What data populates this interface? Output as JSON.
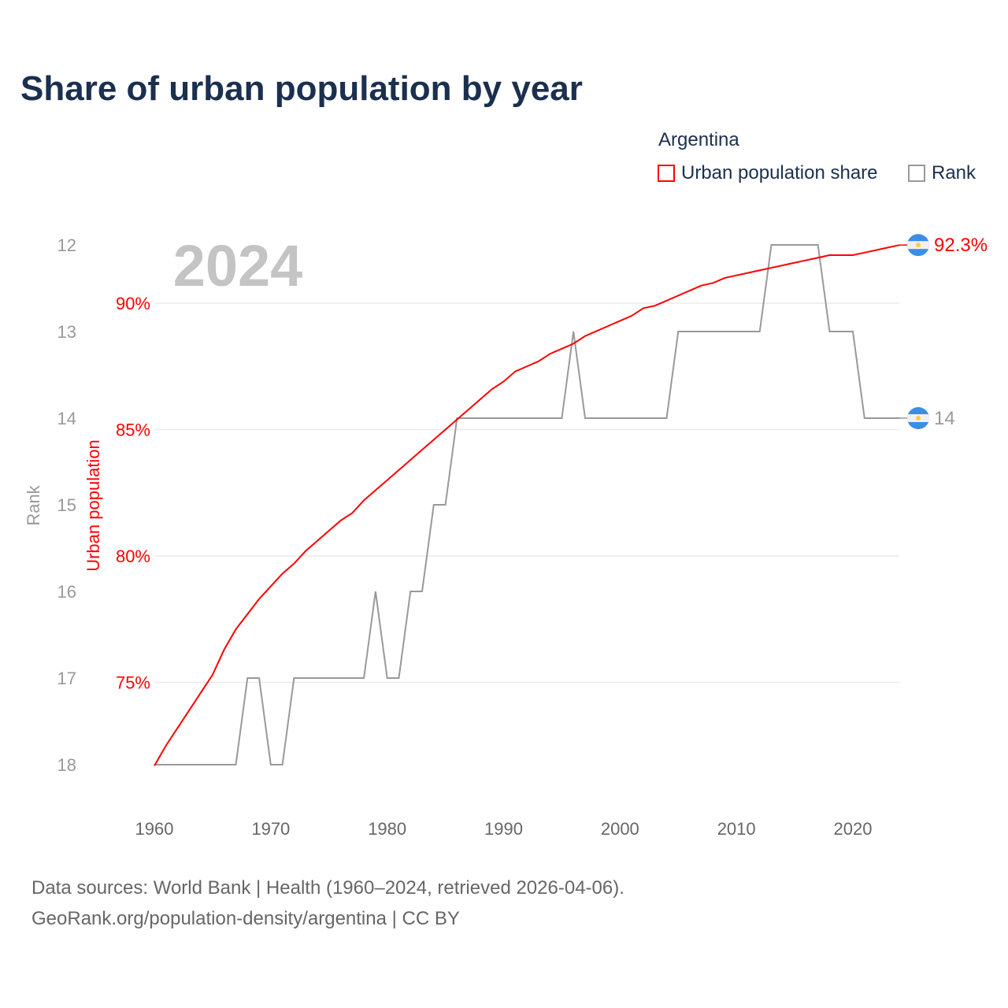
{
  "title": "Share of urban population by year",
  "legend": {
    "title": "Argentina",
    "items": [
      {
        "label": "Urban population share",
        "color": "#ff0000"
      },
      {
        "label": "Rank",
        "color": "#999999"
      }
    ]
  },
  "footer": {
    "line1": "Data sources: World Bank | Health (1960–2024, retrieved 2026-04-06).",
    "line2": "GeoRank.org/population-density/argentina | CC BY"
  },
  "chart_data": {
    "type": "line",
    "title": "Share of urban population by year",
    "year_label": "2024",
    "x": [
      1960,
      1961,
      1962,
      1963,
      1964,
      1965,
      1966,
      1967,
      1968,
      1969,
      1970,
      1971,
      1972,
      1973,
      1974,
      1975,
      1976,
      1977,
      1978,
      1979,
      1980,
      1981,
      1982,
      1983,
      1984,
      1985,
      1986,
      1987,
      1988,
      1989,
      1990,
      1991,
      1992,
      1993,
      1994,
      1995,
      1996,
      1997,
      1998,
      1999,
      2000,
      2001,
      2002,
      2003,
      2004,
      2005,
      2006,
      2007,
      2008,
      2009,
      2010,
      2011,
      2012,
      2013,
      2014,
      2015,
      2016,
      2017,
      2018,
      2019,
      2020,
      2021,
      2022,
      2023,
      2024
    ],
    "xlim": [
      1960,
      2024
    ],
    "xticks": [
      "1960",
      "1970",
      "1980",
      "1990",
      "2000",
      "2010",
      "2020"
    ],
    "series": [
      {
        "name": "Urban population share",
        "axis": "right",
        "color": "#ff0000",
        "unit": "%",
        "values": [
          71.7,
          72.5,
          73.2,
          73.9,
          74.6,
          75.3,
          76.3,
          77.1,
          77.7,
          78.3,
          78.8,
          79.3,
          79.7,
          80.2,
          80.6,
          81.0,
          81.4,
          81.7,
          82.2,
          82.6,
          83.0,
          83.4,
          83.8,
          84.2,
          84.6,
          85.0,
          85.4,
          85.8,
          86.2,
          86.6,
          86.9,
          87.3,
          87.5,
          87.7,
          88.0,
          88.2,
          88.4,
          88.7,
          88.9,
          89.1,
          89.3,
          89.5,
          89.8,
          89.9,
          90.1,
          90.3,
          90.5,
          90.7,
          90.8,
          91.0,
          91.1,
          91.2,
          91.3,
          91.4,
          91.5,
          91.6,
          91.7,
          91.8,
          91.9,
          91.9,
          91.9,
          92.0,
          92.1,
          92.2,
          92.3
        ],
        "end_label": "92.3%"
      },
      {
        "name": "Rank",
        "axis": "left",
        "color": "#999999",
        "values": [
          18,
          18,
          18,
          18,
          18,
          18,
          18,
          18,
          17,
          17,
          18,
          18,
          17,
          17,
          17,
          17,
          17,
          17,
          17,
          16,
          17,
          17,
          16,
          16,
          15,
          15,
          14,
          14,
          14,
          14,
          14,
          14,
          14,
          14,
          14,
          14,
          13,
          14,
          14,
          14,
          14,
          14,
          14,
          14,
          14,
          13,
          13,
          13,
          13,
          13,
          13,
          13,
          13,
          12,
          12,
          12,
          12,
          12,
          13,
          13,
          13,
          14,
          14,
          14,
          14
        ],
        "end_label": "14"
      }
    ],
    "rank_axis": {
      "label": "Rank",
      "ticks": [
        "12",
        "13",
        "14",
        "15",
        "16",
        "17",
        "18"
      ],
      "range": [
        12,
        18
      ],
      "inverted": true
    },
    "urban_axis": {
      "label": "Urban population",
      "ticks": [
        "90%",
        "85%",
        "80%",
        "75%"
      ],
      "tick_values": [
        90,
        85,
        80,
        75
      ]
    },
    "grid": true,
    "legend_position": "top-right"
  }
}
